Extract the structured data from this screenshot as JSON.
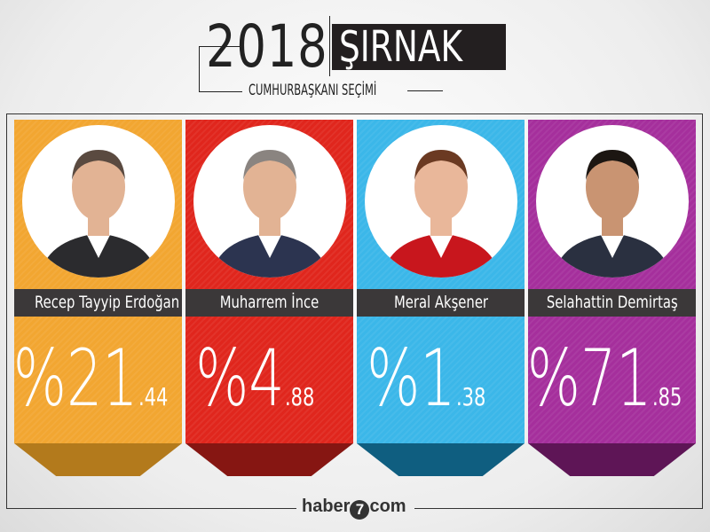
{
  "header": {
    "year": "2018",
    "city": "ŞIRNAK",
    "subtitle": "CUMHURBAŞKANI SEÇİMİ"
  },
  "candidates": [
    {
      "name": "Recep Tayyip Erdoğan",
      "percent_prefix": "%",
      "integer": "21",
      "decimal": ".44",
      "value": 21.44,
      "color": "#f2a631",
      "dark": "#b37a1c",
      "suit": "#2b2b2e"
    },
    {
      "name": "Muharrem İnce",
      "percent_prefix": "%",
      "integer": "4",
      "decimal": ".88",
      "value": 4.88,
      "color": "#e0261d",
      "dark": "#861612",
      "suit": "#2c3450"
    },
    {
      "name": "Meral Akşener",
      "percent_prefix": "%",
      "integer": "1",
      "decimal": ".38",
      "value": 1.38,
      "color": "#3bb7e9",
      "dark": "#0f5e80",
      "suit": "#c8161d"
    },
    {
      "name": "Selahattin Demirtaş",
      "percent_prefix": "%",
      "integer": "71",
      "decimal": ".85",
      "value": 71.85,
      "color": "#a52f9c",
      "dark": "#5e1556",
      "suit": "#2a3040"
    }
  ],
  "logo": {
    "text": "haber",
    "mark": "7",
    "suffix": "com"
  }
}
